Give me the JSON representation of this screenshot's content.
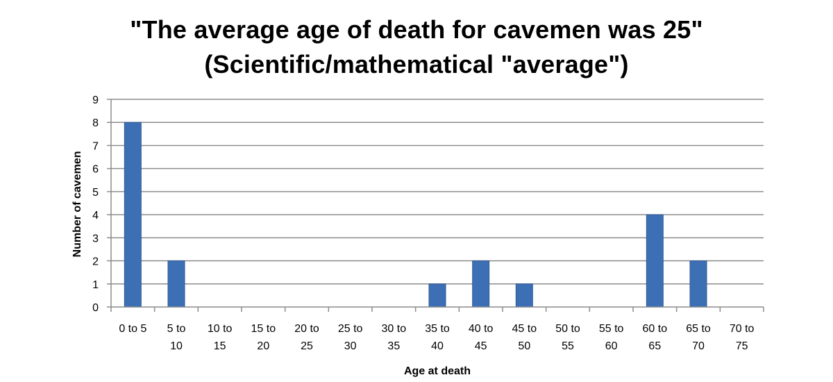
{
  "chart_data": {
    "type": "bar",
    "title": "\"The average age of death for cavemen was 25\"",
    "subtitle": "(Scientific/mathematical \"average\")",
    "xlabel": "Age at death",
    "ylabel": "Number of cavemen",
    "categories": [
      [
        "0 to 5",
        ""
      ],
      [
        "5 to",
        "10"
      ],
      [
        "10 to",
        "15"
      ],
      [
        "15 to",
        "20"
      ],
      [
        "20 to",
        "25"
      ],
      [
        "25 to",
        "30"
      ],
      [
        "30 to",
        "35"
      ],
      [
        "35 to",
        "40"
      ],
      [
        "40 to",
        "45"
      ],
      [
        "45 to",
        "50"
      ],
      [
        "50 to",
        "55"
      ],
      [
        "55 to",
        "60"
      ],
      [
        "60 to",
        "65"
      ],
      [
        "65 to",
        "70"
      ],
      [
        "70 to",
        "75"
      ]
    ],
    "values": [
      8,
      2,
      0,
      0,
      0,
      0,
      0,
      1,
      2,
      1,
      0,
      0,
      4,
      2,
      0
    ],
    "ylim": [
      0,
      9
    ],
    "yticks": [
      "0",
      "1",
      "2",
      "3",
      "4",
      "5",
      "6",
      "7",
      "8",
      "9"
    ],
    "grid": true,
    "legend": "none",
    "colors": {
      "bar": "#3d6fb4",
      "bar_edge": "#2f5a94",
      "grid": "#8c8c8c",
      "axis": "#8c8c8c"
    }
  }
}
